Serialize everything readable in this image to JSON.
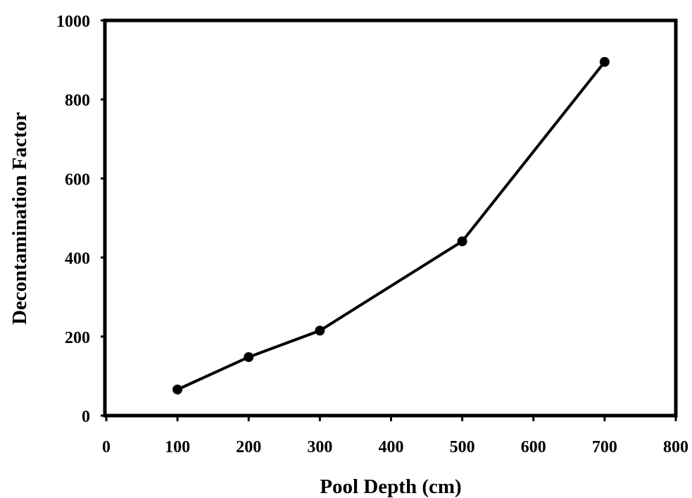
{
  "chart_data": {
    "type": "line",
    "title": "",
    "xlabel": "Pool Depth (cm)",
    "ylabel": "Decontamination Factor",
    "xlim": [
      0,
      800
    ],
    "ylim": [
      0,
      1000
    ],
    "xticks": [
      0,
      100,
      200,
      300,
      400,
      500,
      600,
      700,
      800
    ],
    "yticks": [
      0,
      200,
      400,
      600,
      800,
      1000
    ],
    "grid": false,
    "legend": "none",
    "series": [
      {
        "x": [
          100,
          200,
          300,
          500,
          700
        ],
        "y": [
          66,
          148,
          215,
          441,
          895
        ],
        "marker": "circle",
        "color": "#000000"
      }
    ]
  }
}
